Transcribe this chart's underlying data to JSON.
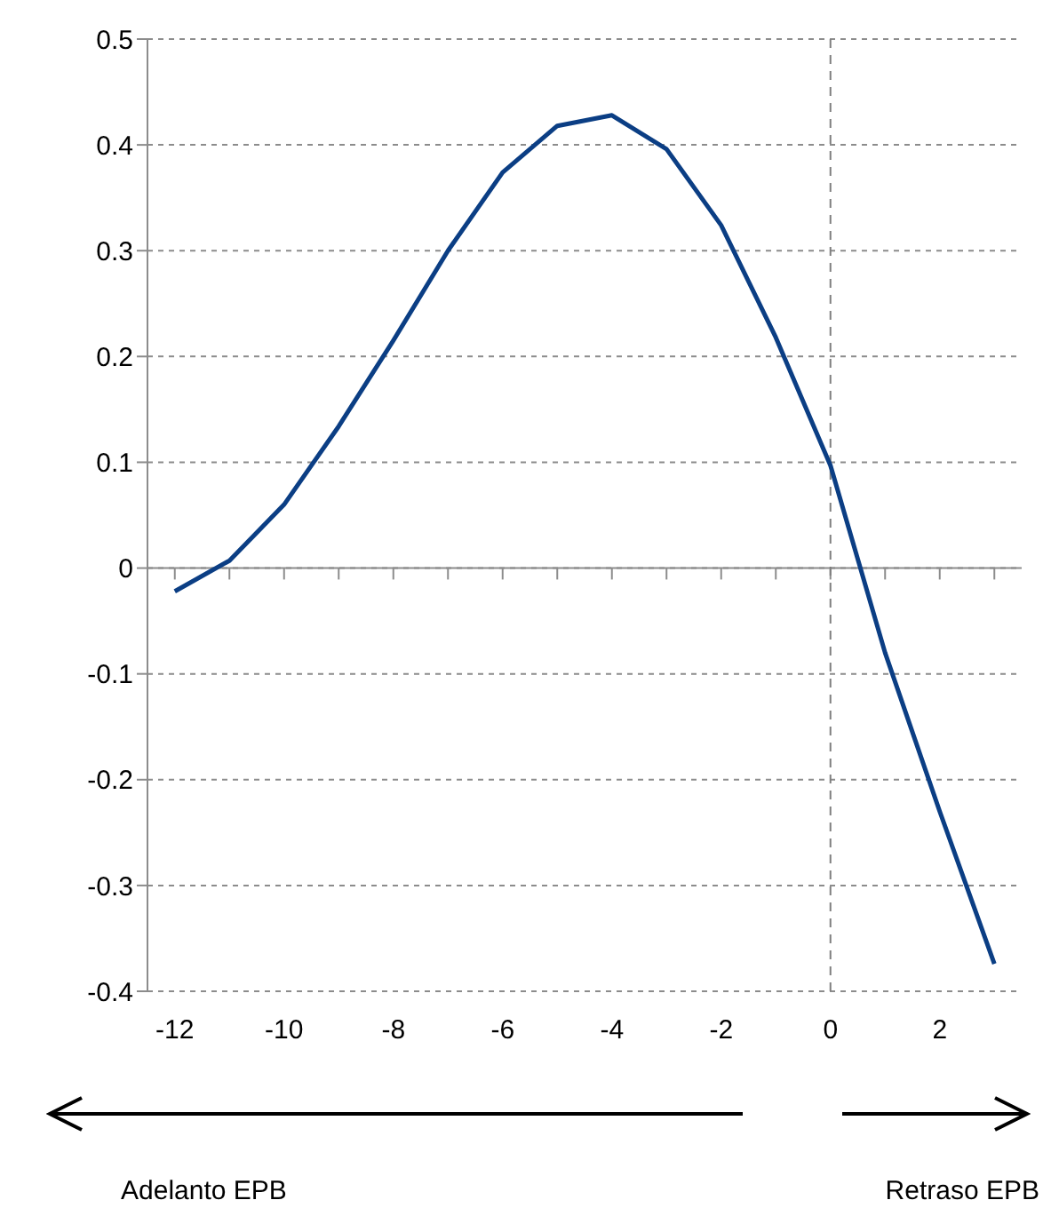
{
  "chart_data": {
    "type": "line",
    "x": [
      -12,
      -11,
      -10,
      -9,
      -8,
      -7,
      -6,
      -5,
      -4,
      -3,
      -2,
      -1,
      0,
      1,
      2,
      3
    ],
    "series": [
      {
        "color": "#0b3e84",
        "values": [
          -0.022,
          0.007,
          0.06,
          0.134,
          0.215,
          0.3,
          0.374,
          0.418,
          0.428,
          0.396,
          0.324,
          0.218,
          0.097,
          -0.08,
          -0.23,
          -0.374
        ]
      }
    ],
    "xlim": [
      -12.5,
      3.5
    ],
    "xticks": [
      -12,
      {
        "value": -11,
        "label": null
      },
      -10,
      {
        "value": -9,
        "label": null
      },
      -8,
      {
        "value": -7,
        "label": null
      },
      -6,
      {
        "value": -5,
        "label": null
      },
      -4,
      {
        "value": -3,
        "label": null
      },
      -2,
      {
        "value": -1,
        "label": null
      },
      0,
      {
        "value": 1,
        "label": null
      },
      2,
      {
        "value": 3,
        "label": null
      }
    ],
    "ylim": [
      -0.4,
      0.5
    ],
    "yticks": [
      -0.4,
      -0.3,
      -0.2,
      -0.1,
      0,
      0.1,
      0.2,
      0.3,
      0.4,
      0.5
    ],
    "grid": "y",
    "marker": "none",
    "line_style": "solid",
    "ref_lines": [
      {
        "axis": "x",
        "value": 0,
        "line_style": "dashed",
        "color": "#7f7f7f"
      }
    ],
    "annotations": [
      "Adelanto EPB",
      "Retraso EPB"
    ]
  }
}
